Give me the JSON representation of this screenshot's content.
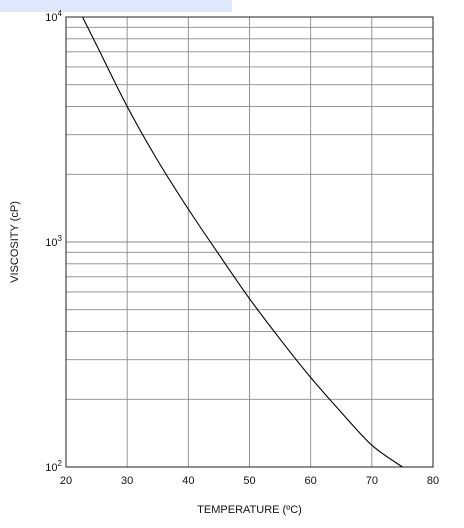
{
  "chart_data": {
    "type": "line",
    "title": "",
    "xlabel": "TEMPERATURE (ºC)",
    "ylabel": "VISCOSITY (cP)",
    "xlim": [
      20,
      80
    ],
    "ylim": [
      100,
      10000
    ],
    "yscale": "log",
    "x_ticks": [
      20,
      30,
      40,
      50,
      60,
      70,
      80
    ],
    "y_ticks": [
      {
        "value": 100,
        "base": "10",
        "exp": "2"
      },
      {
        "value": 1000,
        "base": "10",
        "exp": "3"
      },
      {
        "value": 10000,
        "base": "10",
        "exp": "4"
      }
    ],
    "grid": true,
    "series": [
      {
        "x": [
          22.7,
          25,
          30,
          35,
          40,
          45,
          50,
          55,
          60,
          65,
          70,
          75
        ],
        "y": [
          10000,
          7500,
          4000,
          2300,
          1400,
          880,
          560,
          370,
          250,
          175,
          125,
          100
        ]
      }
    ],
    "colors": {
      "line": "#000000",
      "grid": "#8a8a8a",
      "frame": "#222222",
      "highlight": "#dde9fb"
    }
  }
}
